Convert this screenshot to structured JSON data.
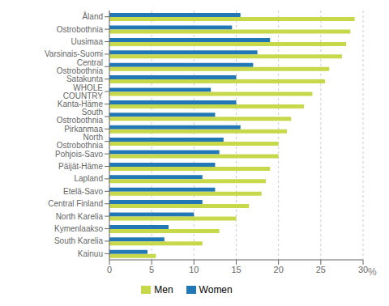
{
  "chart_data": {
    "type": "bar",
    "orientation": "horizontal",
    "categories": [
      "Åland",
      "Ostrobothnia",
      "Uusimaa",
      "Varsinais-Suomi",
      "Central Ostrobothnia",
      "Satakunta",
      "WHOLE COUNTRY",
      "Kanta-Häme",
      "South Ostrobothnia",
      "Pirkanmaa",
      "North Ostrobothnia",
      "Pohjois-Savo",
      "Päijät-Häme",
      "Lapland",
      "Etelä-Savo",
      "Central Finland",
      "North Karelia",
      "Kymenlaakso",
      "South Karelia",
      "Kainuu"
    ],
    "series": [
      {
        "name": "Men",
        "color": "#c7d84b",
        "values": [
          29.0,
          28.5,
          28.0,
          27.5,
          26.0,
          25.5,
          24.0,
          23.0,
          21.5,
          21.0,
          20.0,
          20.0,
          19.0,
          18.5,
          18.0,
          16.5,
          15.0,
          13.0,
          11.0,
          5.5
        ]
      },
      {
        "name": "Women",
        "color": "#2278b5",
        "values": [
          15.5,
          14.5,
          19.0,
          17.5,
          17.0,
          15.0,
          12.0,
          15.0,
          12.5,
          15.5,
          13.5,
          13.0,
          12.5,
          11.0,
          12.5,
          11.0,
          10.0,
          7.0,
          6.5,
          4.5
        ]
      }
    ],
    "xlim": [
      0,
      30
    ],
    "xticks": [
      0,
      5,
      10,
      15,
      20,
      25,
      30
    ],
    "xlabel": "%",
    "grid": true,
    "legend": "bottom"
  }
}
